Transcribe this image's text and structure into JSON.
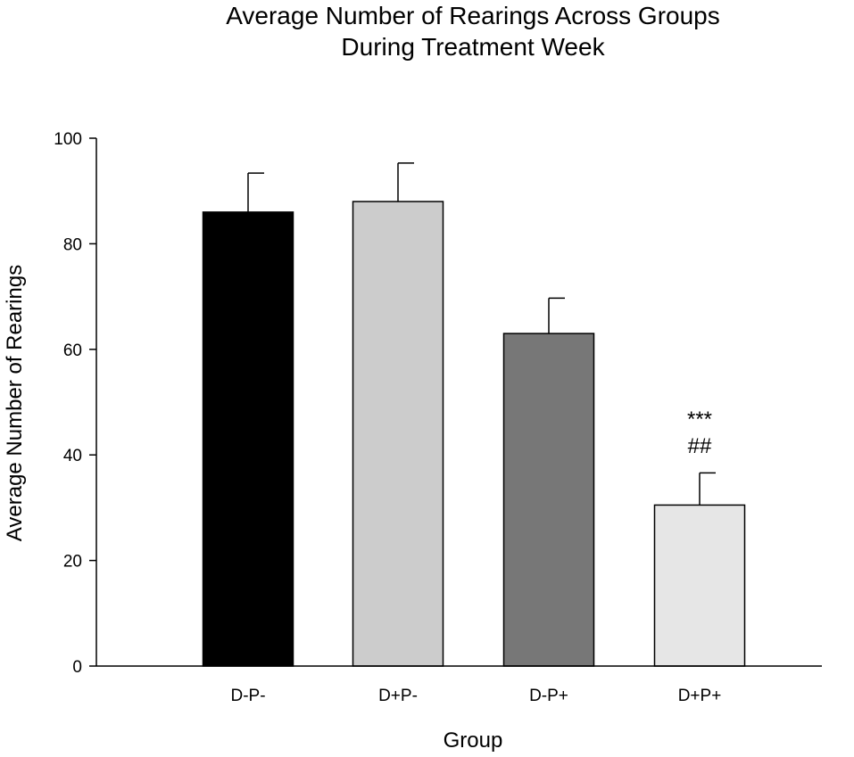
{
  "chart_data": {
    "type": "bar",
    "title_lines": [
      "Average Number of Rearings Across Groups",
      "During Treatment Week"
    ],
    "xlabel": "Group",
    "ylabel": "Average Number of Rearings",
    "categories": [
      "D-P-",
      "D+P-",
      "D-P+",
      "D+P+"
    ],
    "values": [
      86,
      88,
      63,
      30.5
    ],
    "error_upper": [
      7.4,
      7.3,
      6.7,
      6.1
    ],
    "bar_colors": [
      "#000000",
      "#cccccc",
      "#777777",
      "#e6e6e6"
    ],
    "ylim": [
      0,
      100
    ],
    "yticks": [
      0,
      20,
      40,
      60,
      80,
      100
    ],
    "grid": false,
    "annotations": [
      {
        "category": "D+P+",
        "lines": [
          "***",
          "##"
        ]
      }
    ]
  }
}
